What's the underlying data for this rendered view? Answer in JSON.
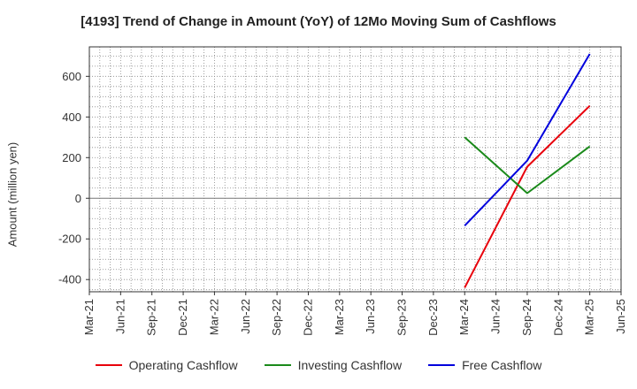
{
  "chart_data": {
    "type": "line",
    "title": "[4193]  Trend of Change in Amount (YoY) of 12Mo Moving Sum of Cashflows",
    "xlabel": "",
    "ylabel": "Amount (million yen)",
    "x_ticks": [
      "Mar-21",
      "Jun-21",
      "Sep-21",
      "Dec-21",
      "Mar-22",
      "Jun-22",
      "Sep-22",
      "Dec-22",
      "Mar-23",
      "Jun-23",
      "Sep-23",
      "Dec-23",
      "Mar-24",
      "Jun-24",
      "Sep-24",
      "Dec-24",
      "Mar-25",
      "Jun-25"
    ],
    "y_ticks": [
      -400,
      -200,
      0,
      200,
      400,
      600
    ],
    "ylim": [
      -460,
      745
    ],
    "grid": true,
    "legend_position": "bottom",
    "series": [
      {
        "name": "Operating Cashflow",
        "color": "#e8000b",
        "x": [
          "Mar-24",
          "Sep-24",
          "Mar-25"
        ],
        "values": [
          -440,
          155,
          455
        ]
      },
      {
        "name": "Investing Cashflow",
        "color": "#1a8a1a",
        "x": [
          "Mar-24",
          "Sep-24",
          "Mar-25"
        ],
        "values": [
          300,
          25,
          255
        ]
      },
      {
        "name": "Free Cashflow",
        "color": "#0000dd",
        "x": [
          "Mar-24",
          "Sep-24",
          "Mar-25"
        ],
        "values": [
          -135,
          185,
          710
        ]
      }
    ]
  }
}
